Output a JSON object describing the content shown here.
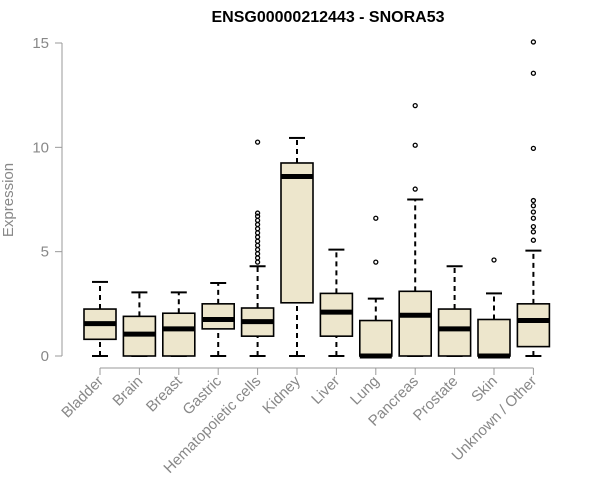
{
  "chart_data": {
    "type": "boxplot",
    "title": "ENSG00000212443 - SNORA53",
    "xlabel": "",
    "ylabel": "Expression",
    "ylim": [
      0,
      15.5
    ],
    "yticks": [
      0,
      5,
      10,
      15
    ],
    "box_fill": "#ede6cc",
    "categories": [
      "Bladder",
      "Brain",
      "Breast",
      "Gastric",
      "Hematopoietic cells",
      "Kidney",
      "Liver",
      "Lung",
      "Pancreas",
      "Prostate",
      "Skin",
      "Unknown / Other"
    ],
    "boxes": [
      {
        "name": "Bladder",
        "whisker_low": 0,
        "q1": 0.8,
        "median": 1.55,
        "q3": 2.25,
        "whisker_high": 3.55,
        "outliers": []
      },
      {
        "name": "Brain",
        "whisker_low": 0,
        "q1": 0,
        "median": 1.05,
        "q3": 1.9,
        "whisker_high": 3.05,
        "outliers": []
      },
      {
        "name": "Breast",
        "whisker_low": 0,
        "q1": 0,
        "median": 1.3,
        "q3": 2.05,
        "whisker_high": 3.05,
        "outliers": []
      },
      {
        "name": "Gastric",
        "whisker_low": 0,
        "q1": 1.3,
        "median": 1.75,
        "q3": 2.5,
        "whisker_high": 3.5,
        "outliers": []
      },
      {
        "name": "Hematopoietic cells",
        "whisker_low": 0,
        "q1": 0.95,
        "median": 1.65,
        "q3": 2.3,
        "whisker_high": 4.3,
        "outliers": [
          4.5,
          4.7,
          4.9,
          5.1,
          5.3,
          5.5,
          5.7,
          5.9,
          6.1,
          6.3,
          6.5,
          6.7,
          6.85,
          10.25
        ]
      },
      {
        "name": "Kidney",
        "whisker_low": 0,
        "q1": 2.55,
        "median": 8.6,
        "q3": 9.25,
        "whisker_high": 10.45,
        "outliers": []
      },
      {
        "name": "Liver",
        "whisker_low": 0,
        "q1": 0.95,
        "median": 2.1,
        "q3": 3.0,
        "whisker_high": 5.1,
        "outliers": []
      },
      {
        "name": "Lung",
        "whisker_low": 0,
        "q1": 0,
        "median": 0,
        "q3": 1.7,
        "whisker_high": 2.75,
        "outliers": [
          4.5,
          6.6
        ]
      },
      {
        "name": "Pancreas",
        "whisker_low": 0,
        "q1": 0,
        "median": 1.95,
        "q3": 3.1,
        "whisker_high": 7.5,
        "outliers": [
          8.0,
          10.1,
          12.0
        ]
      },
      {
        "name": "Prostate",
        "whisker_low": 0,
        "q1": 0,
        "median": 1.3,
        "q3": 2.25,
        "whisker_high": 4.3,
        "outliers": []
      },
      {
        "name": "Skin",
        "whisker_low": 0,
        "q1": 0,
        "median": 0,
        "q3": 1.75,
        "whisker_high": 3.0,
        "outliers": [
          4.6
        ]
      },
      {
        "name": "Unknown / Other",
        "whisker_low": 0,
        "q1": 0.45,
        "median": 1.7,
        "q3": 2.5,
        "whisker_high": 5.05,
        "outliers": [
          5.55,
          5.95,
          6.2,
          6.6,
          6.9,
          7.2,
          7.45,
          9.95,
          13.55,
          15.05
        ]
      }
    ]
  }
}
